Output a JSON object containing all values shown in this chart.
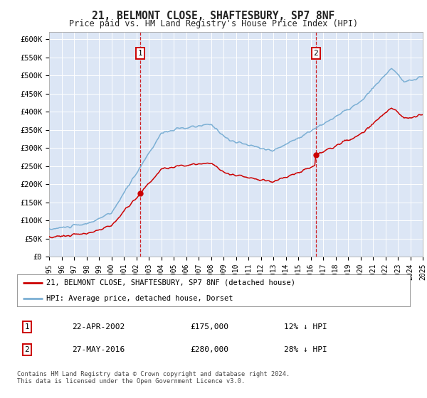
{
  "title": "21, BELMONT CLOSE, SHAFTESBURY, SP7 8NF",
  "subtitle": "Price paid vs. HM Land Registry's House Price Index (HPI)",
  "ylim": [
    0,
    620000
  ],
  "yticks": [
    0,
    50000,
    100000,
    150000,
    200000,
    250000,
    300000,
    350000,
    400000,
    450000,
    500000,
    550000,
    600000
  ],
  "ytick_labels": [
    "£0",
    "£50K",
    "£100K",
    "£150K",
    "£200K",
    "£250K",
    "£300K",
    "£350K",
    "£400K",
    "£450K",
    "£500K",
    "£550K",
    "£600K"
  ],
  "plot_bg_color": "#dce6f5",
  "outer_bg_color": "#ffffff",
  "sale1_date": 2002.31,
  "sale1_price": 175000,
  "sale2_date": 2016.41,
  "sale2_price": 280000,
  "hpi_color": "#7bafd4",
  "price_color": "#cc0000",
  "legend_line1": "21, BELMONT CLOSE, SHAFTESBURY, SP7 8NF (detached house)",
  "legend_line2": "HPI: Average price, detached house, Dorset",
  "table_row1": [
    "1",
    "22-APR-2002",
    "£175,000",
    "12% ↓ HPI"
  ],
  "table_row2": [
    "2",
    "27-MAY-2016",
    "£280,000",
    "28% ↓ HPI"
  ],
  "footer": "Contains HM Land Registry data © Crown copyright and database right 2024.\nThis data is licensed under the Open Government Licence v3.0.",
  "xstart": 1995,
  "xend": 2025
}
